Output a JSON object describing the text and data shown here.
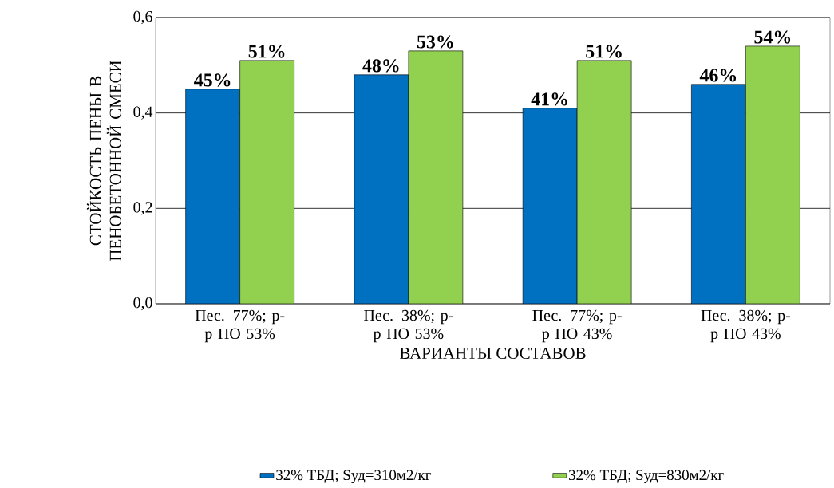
{
  "chart_data": {
    "type": "bar",
    "xlabel": "ВАРИАНТЫ СОСТАВОВ",
    "ylabel": "СТОЙКОСТЬ ПЕНЫ В ПЕНОБЕТОННОЙ СМЕСИ",
    "categories": [
      "Пес. 77%; р-р ПО 53%",
      "Пес. 38%; р-р ПО 53%",
      "Пес. 77%; р-р ПО 43%",
      "Пес. 38%; р-р ПО 43%"
    ],
    "series": [
      {
        "name": "32% ТБД; Sуд=310м2/кг",
        "color": "#0070c0",
        "values": [
          0.45,
          0.48,
          0.41,
          0.46
        ],
        "value_labels": [
          "45%",
          "48%",
          "41%",
          "46%"
        ]
      },
      {
        "name": "32% ТБД; Sуд=830м2/кг",
        "color": "#92d050",
        "values": [
          0.51,
          0.53,
          0.51,
          0.54
        ],
        "value_labels": [
          "51%",
          "53%",
          "51%",
          "54%"
        ]
      }
    ],
    "ylim": [
      0,
      0.6
    ],
    "yticks": [
      {
        "value": 0,
        "label": "0,0"
      },
      {
        "value": 0.2,
        "label": "0,2"
      },
      {
        "value": 0.4,
        "label": "0,4"
      },
      {
        "value": 0.6,
        "label": "0,6"
      }
    ],
    "grid": "y",
    "legend": "bottom"
  }
}
